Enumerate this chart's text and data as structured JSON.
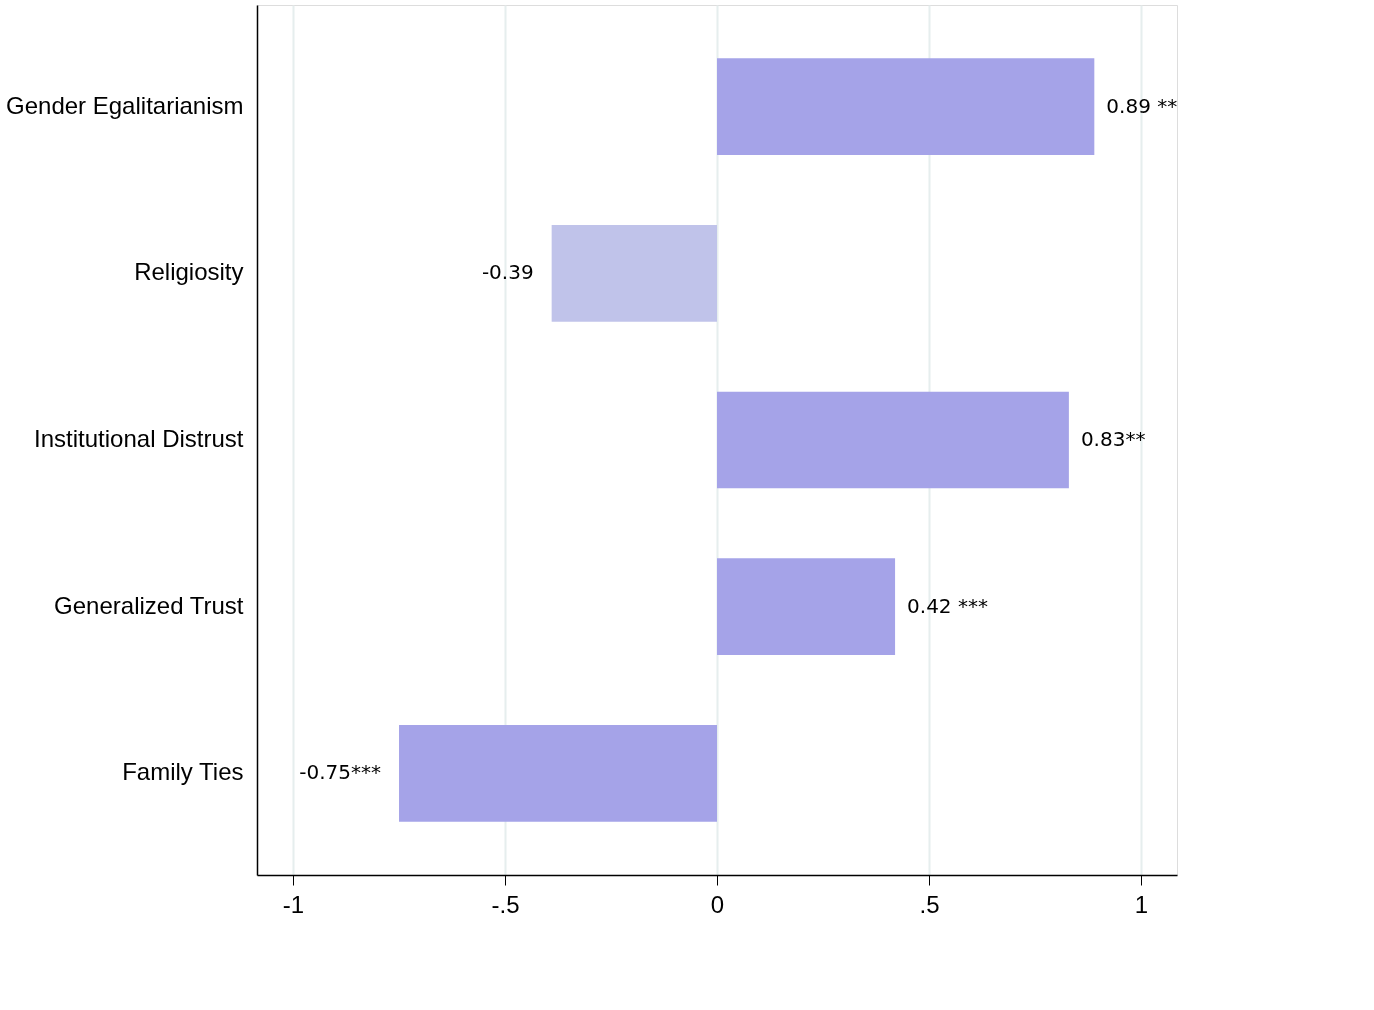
{
  "chart_data": {
    "type": "bar",
    "orientation": "horizontal",
    "categories": [
      "Gender Egalitarianism",
      "Religiosity",
      "Institutional Distrust",
      "Generalized Trust",
      "Family Ties"
    ],
    "values": [
      0.89,
      -0.39,
      0.83,
      0.42,
      -0.75
    ],
    "colors": [
      "#a5a3e8",
      "#c0c3ea",
      "#a5a3e8",
      "#a5a3e8",
      "#a5a3e8"
    ],
    "value_labels": [
      "0.89 **",
      "-0.39",
      "0.83**",
      "0.42 ***",
      "-0.75***"
    ],
    "xlim": [
      -1.085,
      1.085
    ],
    "xticks": [
      {
        "value": -1,
        "label": "-1"
      },
      {
        "value": -0.5,
        "label": "-.5"
      },
      0,
      {
        "value": 0.5,
        "label": ".5"
      },
      1
    ],
    "grid": "x"
  }
}
